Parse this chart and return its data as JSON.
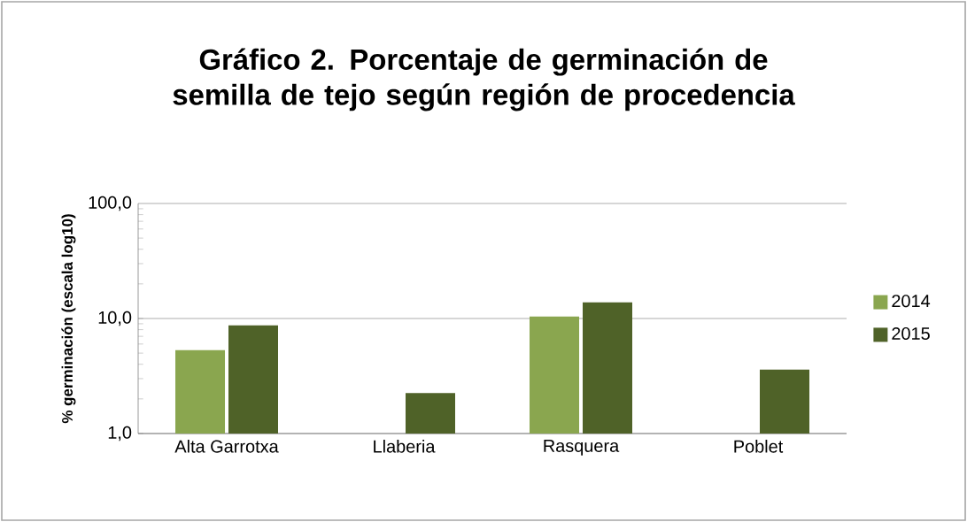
{
  "chart_data": {
    "type": "bar",
    "title": "Gráfico 2. Porcentaje de germinación de semilla de tejo según región de procedencia",
    "ylabel": "% germinación  (escala log10)",
    "categories": [
      "Alta Garrotxa",
      "Llaberia",
      "Rasquera",
      "Poblet"
    ],
    "series": [
      {
        "name": "2014",
        "color": "#8aa64f",
        "values": [
          5.3,
          null,
          10.4,
          null
        ]
      },
      {
        "name": "2015",
        "color": "#4f6228",
        "values": [
          8.7,
          2.25,
          13.8,
          3.6
        ]
      }
    ],
    "log": "y",
    "ylim": [
      1,
      100
    ],
    "yticks": [
      {
        "value": 1,
        "label": "1,0"
      },
      {
        "value": 10,
        "label": "10,0"
      },
      {
        "value": 100,
        "label": "100,0"
      }
    ],
    "grid": "y",
    "legend": "right"
  }
}
